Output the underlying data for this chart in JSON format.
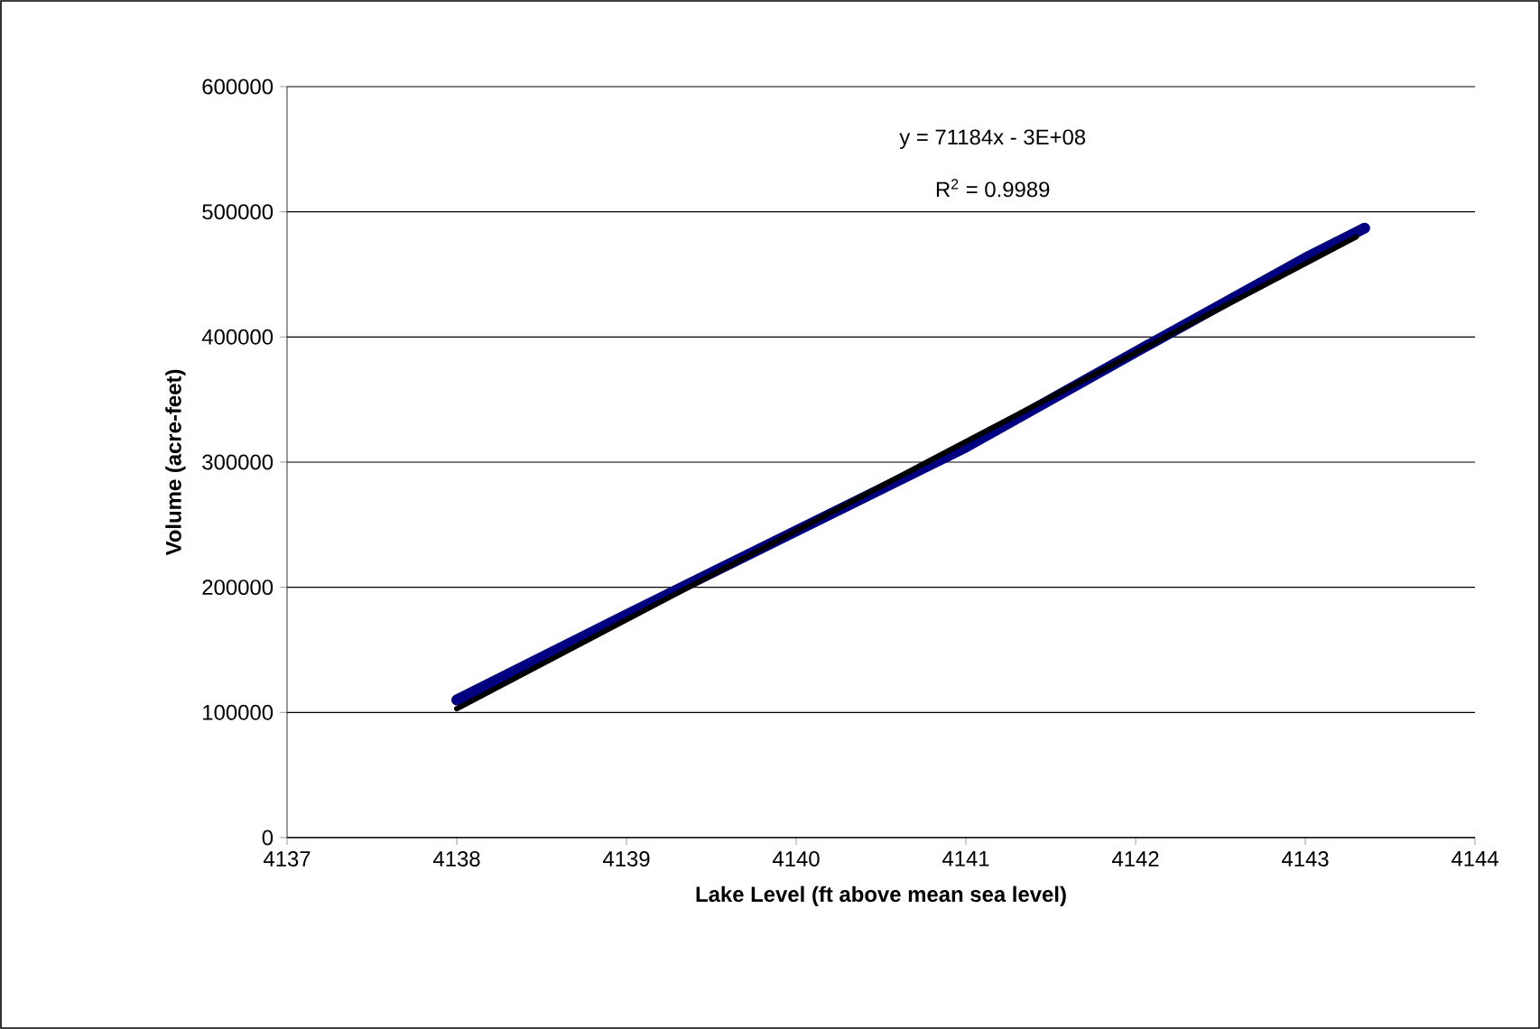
{
  "chart_data": {
    "type": "line",
    "xlabel": "Lake Level (ft above mean sea level)",
    "ylabel": "Volume (acre-feet)",
    "xlim": [
      4137,
      4144
    ],
    "xticks": [
      4137,
      4138,
      4139,
      4140,
      4141,
      4142,
      4143,
      4144
    ],
    "ylim": [
      0,
      600000
    ],
    "yticks": [
      0,
      100000,
      200000,
      300000,
      400000,
      500000,
      600000
    ],
    "grid": "y",
    "line_style": "solid",
    "series": [
      {
        "color": "#000080",
        "x": [
          4138,
          4139,
          4140,
          4141,
          4142,
          4143,
          4143.35
        ],
        "values": [
          110000,
          178000,
          245000,
          312000,
          388000,
          463000,
          487000
        ]
      },
      {
        "color": "#000000",
        "x": [
          4138,
          4143.3
        ],
        "values": [
          103000,
          480000
        ]
      }
    ],
    "annotations": [
      "y = 71184x - 3E+08",
      "R$^{2}$ = 0.9989"
    ]
  }
}
